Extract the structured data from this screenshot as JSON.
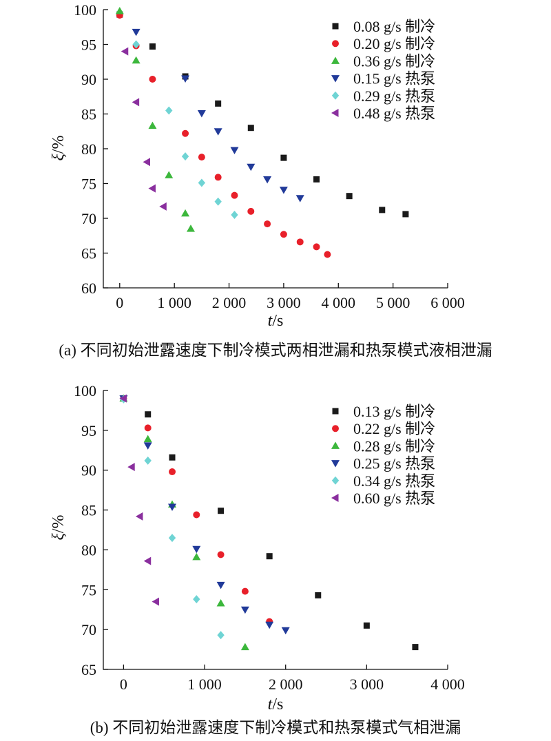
{
  "chart_data": [
    {
      "type": "scatter",
      "panel": "a",
      "caption": "(a) 不同初始泄露速度下制冷模式两相泄漏和热泵模式液相泄漏",
      "xlabel": "t/s",
      "xlabel_italic": "t",
      "xlabel_rest": "/s",
      "ylabel": "ξ/%",
      "ylabel_italic": "ξ",
      "ylabel_rest": "/%",
      "xlim": [
        -300,
        6000
      ],
      "ylim": [
        60,
        100
      ],
      "xticks": [
        0,
        1000,
        2000,
        3000,
        4000,
        5000,
        6000
      ],
      "xtick_labels": [
        "0",
        "1 000",
        "2 000",
        "3 000",
        "4 000",
        "5 000",
        "6 000"
      ],
      "yticks": [
        60,
        65,
        70,
        75,
        80,
        85,
        90,
        95,
        100
      ],
      "ytick_labels": [
        "60",
        "65",
        "70",
        "75",
        "80",
        "85",
        "90",
        "95",
        "100"
      ],
      "legend_position": "top-right",
      "grid": false,
      "series": [
        {
          "name": "0.08 g/s 制冷",
          "marker": "square",
          "color": "#1a1a1a",
          "points": [
            [
              0,
              99.3
            ],
            [
              600,
              94.7
            ],
            [
              1200,
              90.4
            ],
            [
              1800,
              86.5
            ],
            [
              2400,
              83
            ],
            [
              3000,
              78.7
            ],
            [
              3600,
              75.6
            ],
            [
              4200,
              73.2
            ],
            [
              4800,
              71.2
            ],
            [
              5230,
              70.6
            ]
          ]
        },
        {
          "name": "0.20 g/s 制冷",
          "marker": "circle",
          "color": "#e8202a",
          "points": [
            [
              0,
              99.2
            ],
            [
              300,
              94.8
            ],
            [
              600,
              90
            ],
            [
              1200,
              82.2
            ],
            [
              1500,
              78.8
            ],
            [
              1800,
              75.9
            ],
            [
              2100,
              73.3
            ],
            [
              2400,
              71
            ],
            [
              2700,
              69.2
            ],
            [
              3000,
              67.7
            ],
            [
              3300,
              66.6
            ],
            [
              3600,
              65.9
            ],
            [
              3800,
              64.8
            ]
          ]
        },
        {
          "name": "0.36 g/s 制冷",
          "marker": "triangle-up",
          "color": "#3cb73c",
          "points": [
            [
              0,
              99.8
            ],
            [
              300,
              92.7
            ],
            [
              600,
              83.3
            ],
            [
              900,
              76.2
            ],
            [
              1200,
              70.7
            ],
            [
              1300,
              68.5
            ]
          ]
        },
        {
          "name": "0.15 g/s 热泵",
          "marker": "triangle-down",
          "color": "#213a99",
          "points": [
            [
              300,
              96.8
            ],
            [
              1200,
              90.1
            ],
            [
              1500,
              85.1
            ],
            [
              1800,
              82.5
            ],
            [
              2100,
              79.8
            ],
            [
              2400,
              77.4
            ],
            [
              2700,
              75.6
            ],
            [
              3000,
              74.1
            ],
            [
              3300,
              72.9
            ]
          ]
        },
        {
          "name": "0.29 g/s 热泵",
          "marker": "diamond",
          "color": "#6fd4d4",
          "points": [
            [
              300,
              95
            ],
            [
              900,
              85.5
            ],
            [
              1200,
              78.9
            ],
            [
              1500,
              75.1
            ],
            [
              1800,
              72.4
            ],
            [
              2100,
              70.5
            ]
          ]
        },
        {
          "name": "0.48 g/s 热泵",
          "marker": "triangle-left",
          "color": "#8a2f9e",
          "points": [
            [
              100,
              94
            ],
            [
              300,
              86.7
            ],
            [
              500,
              78.1
            ],
            [
              600,
              74.3
            ],
            [
              800,
              71.7
            ]
          ]
        }
      ]
    },
    {
      "type": "scatter",
      "panel": "b",
      "caption": "(b) 不同初始泄露速度下制冷模式和热泵模式气相泄漏",
      "xlabel": "t/s",
      "xlabel_italic": "t",
      "xlabel_rest": "/s",
      "ylabel": "ξ/%",
      "ylabel_italic": "ξ",
      "ylabel_rest": "/%",
      "xlim": [
        -250,
        4000
      ],
      "ylim": [
        65,
        100
      ],
      "xticks": [
        0,
        1000,
        2000,
        3000,
        4000
      ],
      "xtick_labels": [
        "0",
        "1 000",
        "2 000",
        "3 000",
        "4 000"
      ],
      "yticks": [
        65,
        70,
        75,
        80,
        85,
        90,
        95,
        100
      ],
      "ytick_labels": [
        "65",
        "70",
        "75",
        "80",
        "85",
        "90",
        "95",
        "100"
      ],
      "legend_position": "top-right",
      "grid": false,
      "series": [
        {
          "name": "0.13 g/s 制冷",
          "marker": "square",
          "color": "#1a1a1a",
          "points": [
            [
              0,
              99
            ],
            [
              300,
              97
            ],
            [
              600,
              91.6
            ],
            [
              1200,
              84.9
            ],
            [
              1800,
              79.2
            ],
            [
              2400,
              74.3
            ],
            [
              3000,
              70.5
            ],
            [
              3600,
              67.8
            ]
          ]
        },
        {
          "name": "0.22 g/s 制冷",
          "marker": "circle",
          "color": "#e8202a",
          "points": [
            [
              0,
              99
            ],
            [
              300,
              95.3
            ],
            [
              600,
              89.8
            ],
            [
              900,
              84.4
            ],
            [
              1200,
              79.4
            ],
            [
              1500,
              74.8
            ],
            [
              1800,
              71
            ]
          ]
        },
        {
          "name": "0.28 g/s 制冷",
          "marker": "triangle-up",
          "color": "#3cb73c",
          "points": [
            [
              0,
              99
            ],
            [
              300,
              93.9
            ],
            [
              600,
              85.7
            ],
            [
              900,
              79.1
            ],
            [
              1200,
              73.3
            ],
            [
              1500,
              67.8
            ]
          ]
        },
        {
          "name": "0.25 g/s 热泵",
          "marker": "triangle-down",
          "color": "#213a99",
          "points": [
            [
              0,
              99
            ],
            [
              300,
              93.1
            ],
            [
              600,
              85.4
            ],
            [
              900,
              80.1
            ],
            [
              1200,
              75.6
            ],
            [
              1500,
              72.5
            ],
            [
              1800,
              70.6
            ],
            [
              2000,
              69.9
            ]
          ]
        },
        {
          "name": "0.34 g/s 热泵",
          "marker": "diamond",
          "color": "#6fd4d4",
          "points": [
            [
              0,
              98.9
            ],
            [
              300,
              91.2
            ],
            [
              600,
              81.5
            ],
            [
              900,
              73.8
            ],
            [
              1200,
              69.3
            ]
          ]
        },
        {
          "name": "0.60 g/s 热泵",
          "marker": "triangle-left",
          "color": "#8a2f9e",
          "points": [
            [
              0,
              99
            ],
            [
              100,
              90.4
            ],
            [
              200,
              84.2
            ],
            [
              300,
              78.6
            ],
            [
              400,
              73.5
            ]
          ]
        }
      ]
    }
  ]
}
